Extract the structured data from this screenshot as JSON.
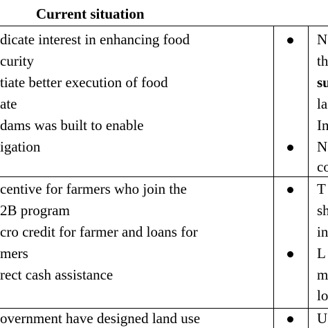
{
  "table": {
    "header": {
      "col_current": "Current situation"
    },
    "rows": [
      {
        "current_lines": [
          "dicate interest in enhancing food",
          "curity",
          "tiate better execution of food",
          "ate",
          "dams was built to enable",
          "igation"
        ],
        "right_lines": [
          "N",
          "th",
          "su",
          "la",
          "In",
          "N",
          "co"
        ]
      },
      {
        "current_lines": [
          "centive for farmers who join the",
          "2B program",
          "cro credit for farmer and loans for",
          "mers",
          "rect cash assistance"
        ],
        "right_lines": [
          "T",
          "sh",
          "in",
          "L",
          "m",
          "lo"
        ]
      },
      {
        "current_lines": [
          "overnment have designed land use"
        ],
        "right_lines": [
          "U"
        ]
      }
    ]
  }
}
